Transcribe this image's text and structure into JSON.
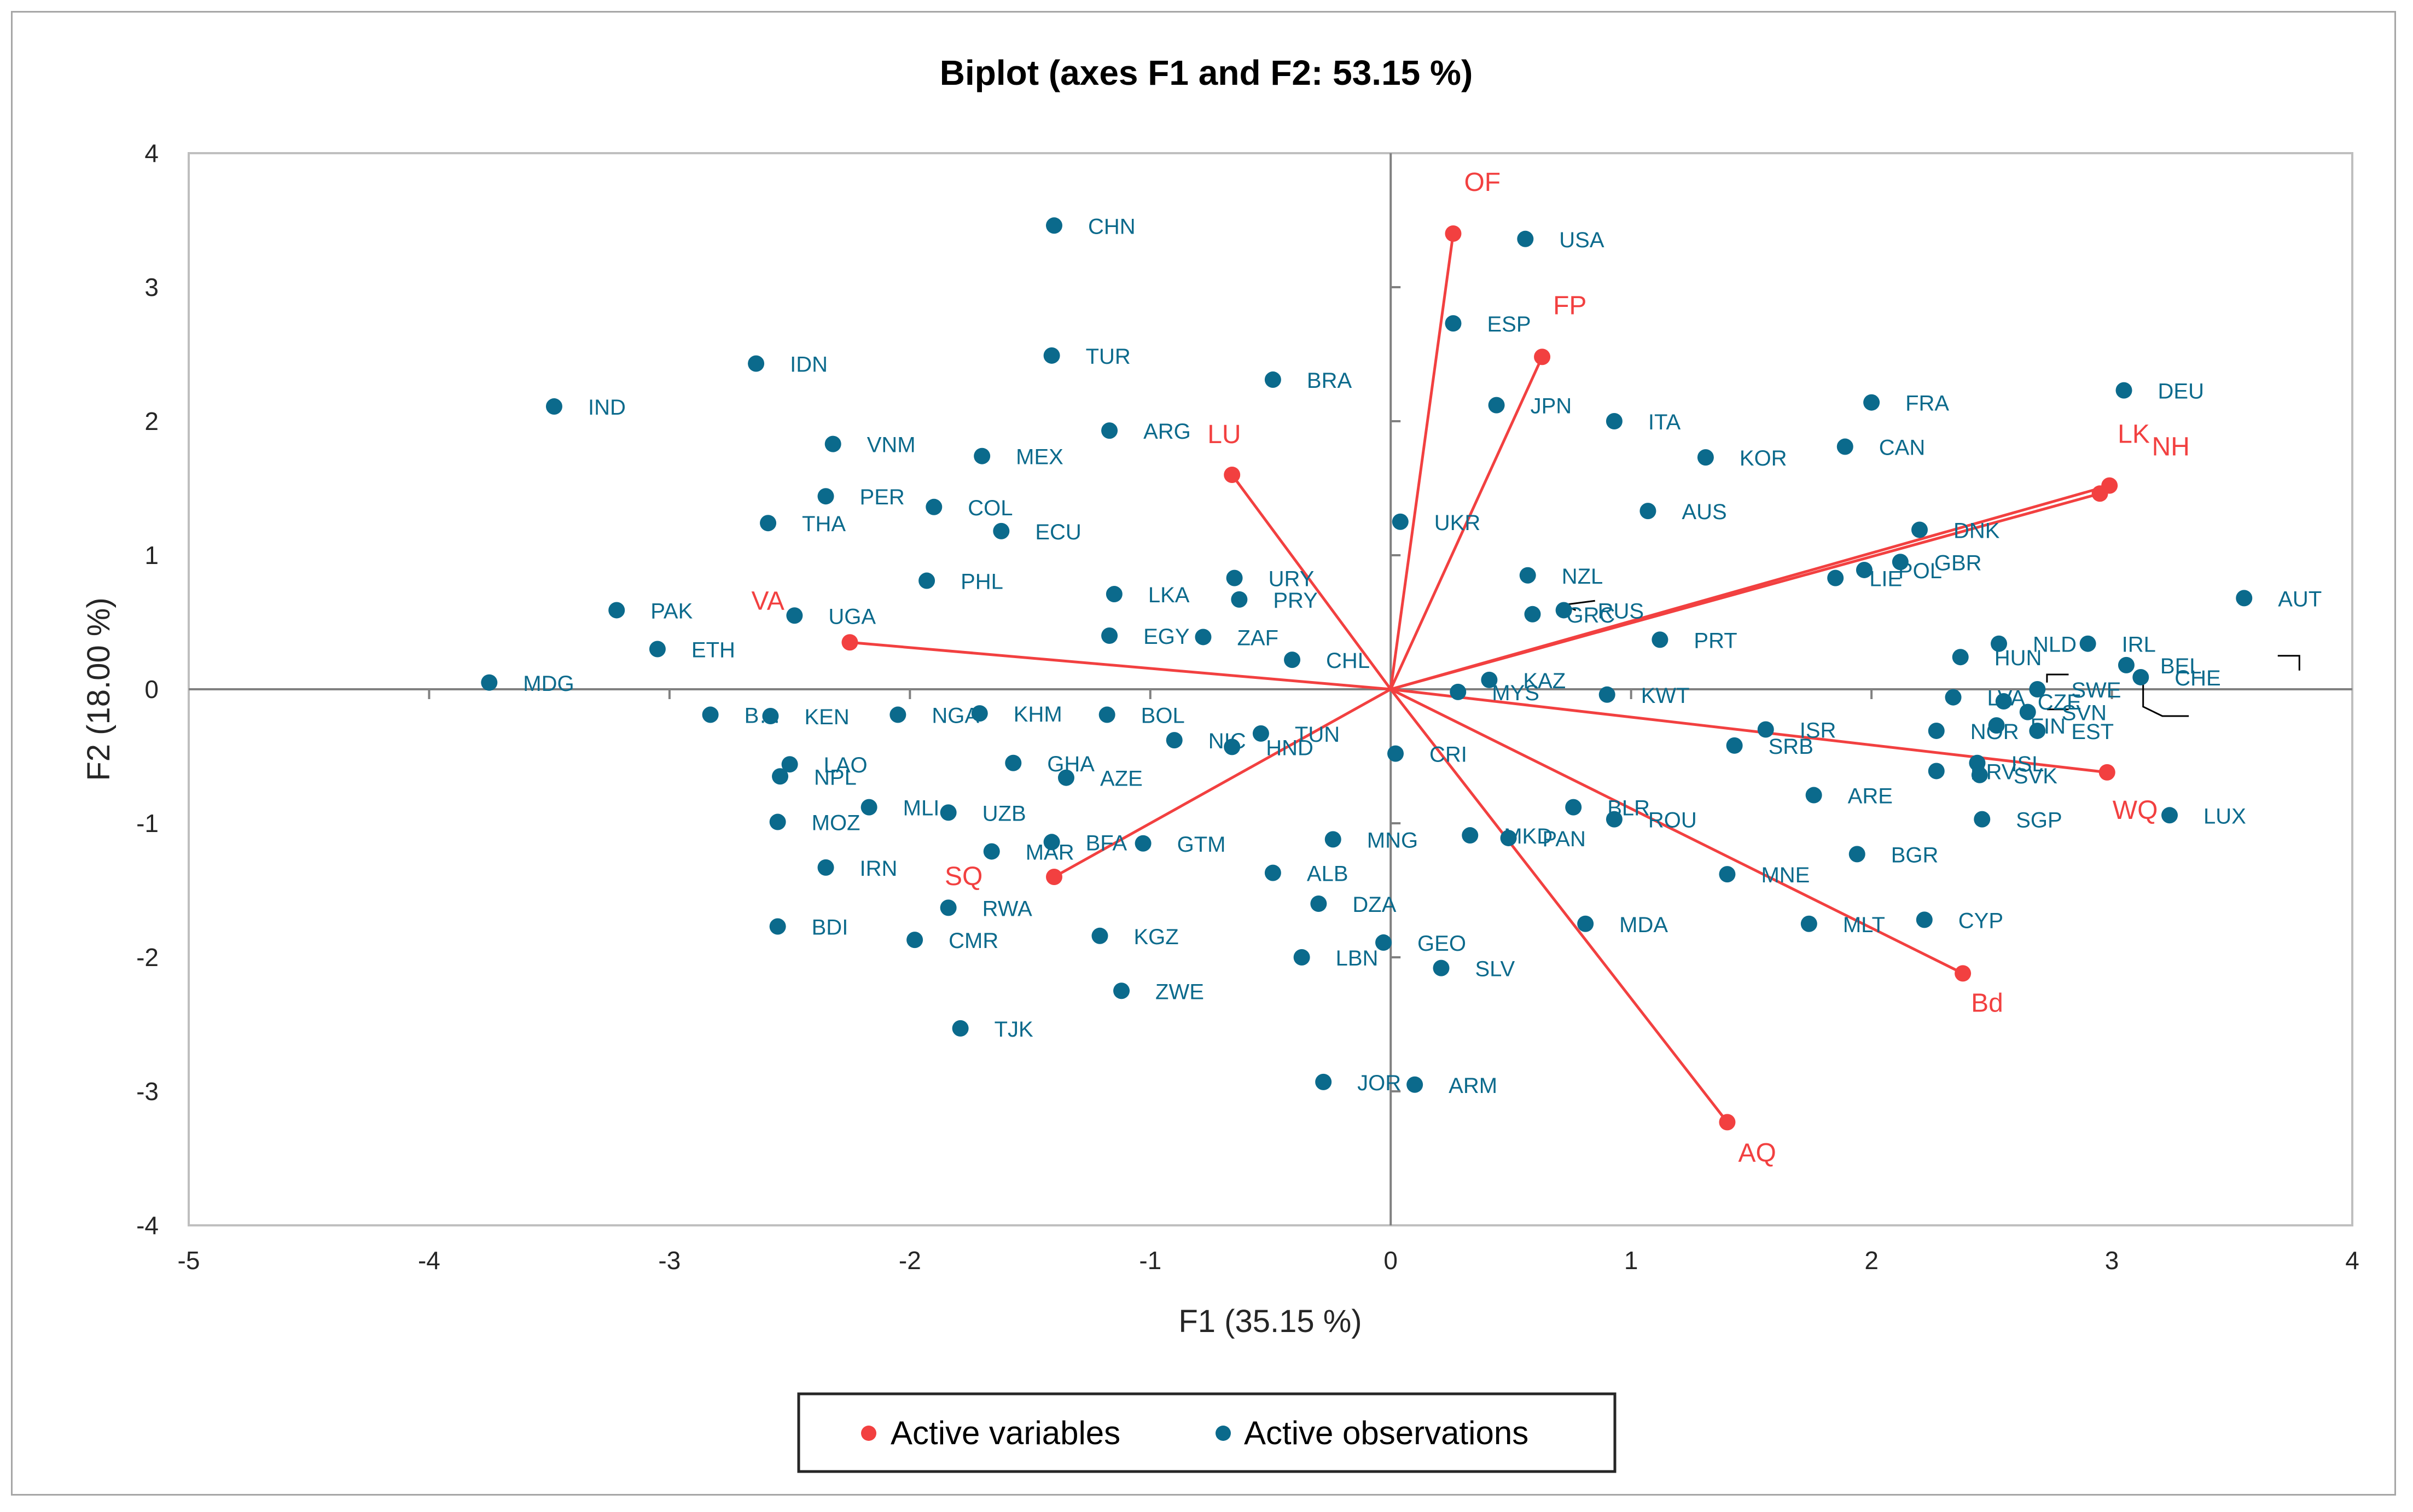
{
  "colors": {
    "variables": "#f24040",
    "observations": "#0b6a8c",
    "axis_text": "#262626",
    "grid": "#808080",
    "frame": "#a6a6a6"
  },
  "legend": {
    "variables_label": "Active variables",
    "observations_label": "Active observations"
  },
  "chart_data": {
    "type": "scatter",
    "title": "Biplot (axes F1 and F2: 53.15 %)",
    "xlabel": "F1 (35.15 %)",
    "ylabel": "F2 (18.00 %)",
    "xlim": [
      -5,
      4
    ],
    "ylim": [
      -4,
      4
    ],
    "xticks": [
      "-5",
      "-4",
      "-3",
      "-2",
      "-1",
      "0",
      "1",
      "2",
      "3",
      "4"
    ],
    "yticks": [
      "-4",
      "-3",
      "-2",
      "-1",
      "0",
      "1",
      "2",
      "3",
      "4"
    ],
    "legend_position": "bottom",
    "variables": [
      {
        "label": "OF",
        "x": 0.26,
        "y": 3.4
      },
      {
        "label": "FP",
        "x": 0.63,
        "y": 2.48
      },
      {
        "label": "LU",
        "x": -0.66,
        "y": 1.6
      },
      {
        "label": "LK",
        "x": 2.99,
        "y": 1.52
      },
      {
        "label": "NH",
        "x": 2.95,
        "y": 1.46
      },
      {
        "label": "VA",
        "x": -2.25,
        "y": 0.35
      },
      {
        "label": "WQ",
        "x": 2.98,
        "y": -0.62
      },
      {
        "label": "SQ",
        "x": -1.4,
        "y": -1.4
      },
      {
        "label": "Bd",
        "x": 2.38,
        "y": -2.12
      },
      {
        "label": "AQ",
        "x": 1.4,
        "y": -3.23
      }
    ],
    "observations": [
      {
        "label": "CHN",
        "x": -1.4,
        "y": 3.46
      },
      {
        "label": "USA",
        "x": 0.56,
        "y": 3.36
      },
      {
        "label": "ESP",
        "x": 0.26,
        "y": 2.73
      },
      {
        "label": "IDN",
        "x": -2.64,
        "y": 2.43
      },
      {
        "label": "TUR",
        "x": -1.41,
        "y": 2.49
      },
      {
        "label": "BRA",
        "x": -0.49,
        "y": 2.31
      },
      {
        "label": "DEU",
        "x": 3.05,
        "y": 2.23
      },
      {
        "label": "IND",
        "x": -3.48,
        "y": 2.11
      },
      {
        "label": "ARG",
        "x": -1.17,
        "y": 1.93
      },
      {
        "label": "JPN",
        "x": 0.44,
        "y": 2.12
      },
      {
        "label": "FRA",
        "x": 2.0,
        "y": 2.14
      },
      {
        "label": "ITA",
        "x": 0.93,
        "y": 2.0
      },
      {
        "label": "VNM",
        "x": -2.32,
        "y": 1.83
      },
      {
        "label": "MEX",
        "x": -1.7,
        "y": 1.74
      },
      {
        "label": "CAN",
        "x": 1.89,
        "y": 1.81
      },
      {
        "label": "KOR",
        "x": 1.31,
        "y": 1.73
      },
      {
        "label": "PER",
        "x": -2.35,
        "y": 1.44
      },
      {
        "label": "COL",
        "x": -1.9,
        "y": 1.36
      },
      {
        "label": "AUS",
        "x": 1.07,
        "y": 1.33
      },
      {
        "label": "THA",
        "x": -2.59,
        "y": 1.24
      },
      {
        "label": "ECU",
        "x": -1.62,
        "y": 1.18
      },
      {
        "label": "UKR",
        "x": 0.04,
        "y": 1.25
      },
      {
        "label": "DNK",
        "x": 2.2,
        "y": 1.19
      },
      {
        "label": "GBR",
        "x": 2.12,
        "y": 0.95
      },
      {
        "label": "LIE",
        "x": 1.85,
        "y": 0.83
      },
      {
        "label": "POL",
        "x": 1.97,
        "y": 0.89
      },
      {
        "label": "NZL",
        "x": 0.57,
        "y": 0.85
      },
      {
        "label": "URY",
        "x": -0.65,
        "y": 0.83
      },
      {
        "label": "PHL",
        "x": -1.93,
        "y": 0.81
      },
      {
        "label": "RUS",
        "x": 0.72,
        "y": 0.59
      },
      {
        "label": "LKA",
        "x": -1.15,
        "y": 0.71
      },
      {
        "label": "PRY",
        "x": -0.63,
        "y": 0.67
      },
      {
        "label": "AUT",
        "x": 3.55,
        "y": 0.68
      },
      {
        "label": "PAK",
        "x": -3.22,
        "y": 0.59
      },
      {
        "label": "UGA",
        "x": -2.48,
        "y": 0.55
      },
      {
        "label": "GRC",
        "x": 0.59,
        "y": 0.56
      },
      {
        "label": "EGY",
        "x": -1.17,
        "y": 0.4
      },
      {
        "label": "ZAF",
        "x": -0.78,
        "y": 0.39
      },
      {
        "label": "PRT",
        "x": 1.12,
        "y": 0.37
      },
      {
        "label": "NLD",
        "x": 2.53,
        "y": 0.34
      },
      {
        "label": "IRL",
        "x": 2.9,
        "y": 0.34
      },
      {
        "label": "ETH",
        "x": -3.05,
        "y": 0.3
      },
      {
        "label": "HUN",
        "x": 2.37,
        "y": 0.24
      },
      {
        "label": "CHL",
        "x": -0.41,
        "y": 0.22
      },
      {
        "label": "BEL",
        "x": 3.06,
        "y": 0.18
      },
      {
        "label": "MDG",
        "x": -3.75,
        "y": 0.05
      },
      {
        "label": "KAZ",
        "x": 0.41,
        "y": 0.07
      },
      {
        "label": "SWE",
        "x": 2.69,
        "y": 0.0
      },
      {
        "label": "CHE",
        "x": 3.12,
        "y": 0.09
      },
      {
        "label": "MYS",
        "x": 0.28,
        "y": -0.02
      },
      {
        "label": "KWT",
        "x": 0.9,
        "y": -0.04
      },
      {
        "label": "LVA",
        "x": 2.34,
        "y": -0.06
      },
      {
        "label": "CZE",
        "x": 2.55,
        "y": -0.09
      },
      {
        "label": "SVN",
        "x": 2.65,
        "y": -0.17
      },
      {
        "label": "B…",
        "x": -2.83,
        "y": -0.19
      },
      {
        "label": "KEN",
        "x": -2.58,
        "y": -0.2
      },
      {
        "label": "NGA",
        "x": -2.05,
        "y": -0.19
      },
      {
        "label": "KHM",
        "x": -1.71,
        "y": -0.18
      },
      {
        "label": "BOL",
        "x": -1.18,
        "y": -0.19
      },
      {
        "label": "NOR",
        "x": 2.27,
        "y": -0.31
      },
      {
        "label": "ISR",
        "x": 1.56,
        "y": -0.3
      },
      {
        "label": "FIN",
        "x": 2.52,
        "y": -0.27
      },
      {
        "label": "EST",
        "x": 2.69,
        "y": -0.31
      },
      {
        "label": "TUN",
        "x": -0.54,
        "y": -0.33
      },
      {
        "label": "NIC",
        "x": -0.9,
        "y": -0.38
      },
      {
        "label": "HND",
        "x": -0.66,
        "y": -0.43
      },
      {
        "label": "SRB",
        "x": 1.43,
        "y": -0.42
      },
      {
        "label": "CRI",
        "x": 0.02,
        "y": -0.48
      },
      {
        "label": "GHA",
        "x": -1.57,
        "y": -0.55
      },
      {
        "label": "ISL",
        "x": 2.44,
        "y": -0.55
      },
      {
        "label": "LAO",
        "x": -2.5,
        "y": -0.56
      },
      {
        "label": "NPL",
        "x": -2.54,
        "y": -0.65
      },
      {
        "label": "AZE",
        "x": -1.35,
        "y": -0.66
      },
      {
        "label": "SVK",
        "x": 2.45,
        "y": -0.64
      },
      {
        "label": "HRV",
        "x": 2.27,
        "y": -0.61
      },
      {
        "label": "ARE",
        "x": 1.76,
        "y": -0.79
      },
      {
        "label": "LUX",
        "x": 3.24,
        "y": -0.94
      },
      {
        "label": "MLI",
        "x": -2.17,
        "y": -0.88
      },
      {
        "label": "UZB",
        "x": -1.84,
        "y": -0.92
      },
      {
        "label": "BLR",
        "x": 0.76,
        "y": -0.88
      },
      {
        "label": "ROU",
        "x": 0.93,
        "y": -0.97
      },
      {
        "label": "SGP",
        "x": 2.46,
        "y": -0.97
      },
      {
        "label": "MOZ",
        "x": -2.55,
        "y": -0.99
      },
      {
        "label": "MKD",
        "x": 0.33,
        "y": -1.09
      },
      {
        "label": "PAN",
        "x": 0.49,
        "y": -1.11
      },
      {
        "label": "MNG",
        "x": -0.24,
        "y": -1.12
      },
      {
        "label": "BFA",
        "x": -1.41,
        "y": -1.14
      },
      {
        "label": "GTM",
        "x": -1.03,
        "y": -1.15
      },
      {
        "label": "MAR",
        "x": -1.66,
        "y": -1.21
      },
      {
        "label": "BGR",
        "x": 1.94,
        "y": -1.23
      },
      {
        "label": "IRN",
        "x": -2.35,
        "y": -1.33
      },
      {
        "label": "ALB",
        "x": -0.49,
        "y": -1.37
      },
      {
        "label": "MNE",
        "x": 1.4,
        "y": -1.38
      },
      {
        "label": "DZA",
        "x": -0.3,
        "y": -1.6
      },
      {
        "label": "RWA",
        "x": -1.84,
        "y": -1.63
      },
      {
        "label": "CYP",
        "x": 2.22,
        "y": -1.72
      },
      {
        "label": "MDA",
        "x": 0.81,
        "y": -1.75
      },
      {
        "label": "MLT",
        "x": 1.74,
        "y": -1.75
      },
      {
        "label": "BDI",
        "x": -2.55,
        "y": -1.77
      },
      {
        "label": "KGZ",
        "x": -1.21,
        "y": -1.84
      },
      {
        "label": "CMR",
        "x": -1.98,
        "y": -1.87
      },
      {
        "label": "GEO",
        "x": -0.03,
        "y": -1.89
      },
      {
        "label": "LBN",
        "x": -0.37,
        "y": -2.0
      },
      {
        "label": "SLV",
        "x": 0.21,
        "y": -2.08
      },
      {
        "label": "ZWE",
        "x": -1.12,
        "y": -2.25
      },
      {
        "label": "TJK",
        "x": -1.79,
        "y": -2.53
      },
      {
        "label": "JOR",
        "x": -0.28,
        "y": -2.93
      },
      {
        "label": "ARM",
        "x": 0.1,
        "y": -2.95
      }
    ]
  }
}
